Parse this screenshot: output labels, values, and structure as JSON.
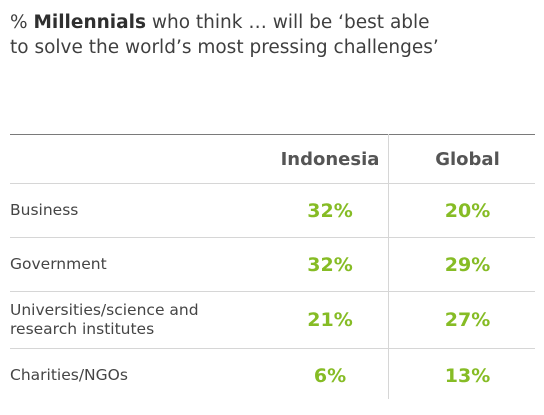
{
  "title": {
    "prefix": "% ",
    "bold": "Millennials",
    "rest_line1": " who think … will be ‘best able",
    "line2": "to solve the world’s most pressing challenges’"
  },
  "colors": {
    "value": "#86bc25",
    "text": "#454545"
  },
  "chart_data": {
    "type": "table",
    "columns": [
      "Indonesia",
      "Global"
    ],
    "rows": [
      {
        "label": "Business",
        "values": [
          "32%",
          "20%"
        ]
      },
      {
        "label": "Government",
        "values": [
          "32%",
          "29%"
        ]
      },
      {
        "label": "Universities/science and research institutes",
        "values": [
          "21%",
          "27%"
        ]
      },
      {
        "label": "Charities/NGOs",
        "values": [
          "6%",
          "13%"
        ]
      }
    ]
  }
}
